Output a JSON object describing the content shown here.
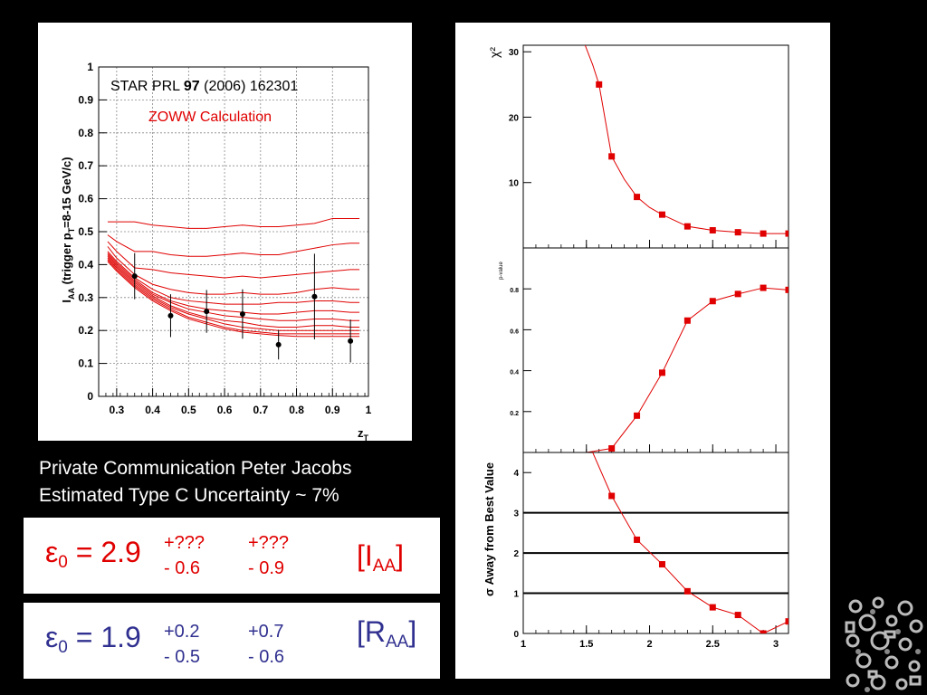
{
  "notes": {
    "line1": "Private Communication Peter Jacobs",
    "line2": "Estimated Type C Uncertainty ~ 7%"
  },
  "colors": {
    "data_red": "#e00000",
    "result_red": "#e00000",
    "result_blue": "#303090",
    "background": "#000000"
  },
  "results": [
    {
      "eps_symbol": "ε",
      "eps_sub": "0",
      "equals": "= 2.9",
      "plus1": "+???",
      "minus1": "- 0.6",
      "plus2": "+???",
      "minus2": "- 0.9",
      "label_main": "[I",
      "label_sub": "AA",
      "label_close": "]",
      "color": "red"
    },
    {
      "eps_symbol": "ε",
      "eps_sub": "0",
      "equals": "= 1.9",
      "plus1": "+0.2",
      "minus1": "- 0.5",
      "plus2": "+0.7",
      "minus2": "- 0.6",
      "label_main": "[R",
      "label_sub": "AA",
      "label_close": "]",
      "color": "blue"
    }
  ],
  "chart_data": [
    {
      "type": "scatter",
      "annotation_ref_prefix": "STAR PRL ",
      "annotation_ref_bold": "97",
      "annotation_ref_suffix": " (2006) 162301",
      "annotation_calc": "ZOWW Calculation",
      "ylabel_main": "I",
      "ylabel_sub1": "AA",
      "ylabel_mid": " (trigger p",
      "ylabel_sub2": "T",
      "ylabel_end": "=8-15 GeV/c)",
      "xlabel_main": "z",
      "xlabel_sub": "T",
      "xlim": [
        0.25,
        1.0
      ],
      "ylim": [
        0,
        1.0
      ],
      "grid": true,
      "x_ticks": [
        "0.3",
        "0.4",
        "0.5",
        "0.6",
        "0.7",
        "0.8",
        "0.9",
        "1"
      ],
      "x_tick_values": [
        0.3,
        0.4,
        0.5,
        0.6,
        0.7,
        0.8,
        0.9,
        1.0
      ],
      "y_ticks": [
        "0",
        "0.1",
        "0.2",
        "0.3",
        "0.4",
        "0.5",
        "0.6",
        "0.7",
        "0.8",
        "0.9",
        "1"
      ],
      "y_tick_values": [
        0,
        0.1,
        0.2,
        0.3,
        0.4,
        0.5,
        0.6,
        0.7,
        0.8,
        0.9,
        1.0
      ],
      "data_points": [
        {
          "x": 0.35,
          "y": 0.365,
          "err": 0.07
        },
        {
          "x": 0.45,
          "y": 0.245,
          "err": 0.065
        },
        {
          "x": 0.55,
          "y": 0.258,
          "err": 0.065
        },
        {
          "x": 0.65,
          "y": 0.25,
          "err": 0.075
        },
        {
          "x": 0.75,
          "y": 0.157,
          "err": 0.045
        },
        {
          "x": 0.85,
          "y": 0.303,
          "err": 0.13
        },
        {
          "x": 0.95,
          "y": 0.168,
          "err": 0.065
        }
      ],
      "curve_x": [
        0.275,
        0.3,
        0.35,
        0.4,
        0.45,
        0.5,
        0.55,
        0.6,
        0.65,
        0.7,
        0.75,
        0.8,
        0.85,
        0.9,
        0.95,
        0.975
      ],
      "series": [
        {
          "values": [
            0.53,
            0.53,
            0.53,
            0.52,
            0.515,
            0.51,
            0.51,
            0.515,
            0.52,
            0.515,
            0.515,
            0.52,
            0.525,
            0.54,
            0.54,
            0.54
          ]
        },
        {
          "values": [
            0.49,
            0.47,
            0.44,
            0.44,
            0.43,
            0.425,
            0.425,
            0.43,
            0.435,
            0.43,
            0.43,
            0.44,
            0.45,
            0.46,
            0.465,
            0.465
          ]
        },
        {
          "values": [
            0.47,
            0.44,
            0.39,
            0.385,
            0.375,
            0.37,
            0.365,
            0.36,
            0.365,
            0.36,
            0.365,
            0.37,
            0.375,
            0.38,
            0.385,
            0.385
          ]
        },
        {
          "values": [
            0.455,
            0.42,
            0.37,
            0.34,
            0.325,
            0.315,
            0.31,
            0.31,
            0.315,
            0.31,
            0.31,
            0.315,
            0.325,
            0.33,
            0.325,
            0.325
          ]
        },
        {
          "values": [
            0.44,
            0.41,
            0.36,
            0.325,
            0.3,
            0.29,
            0.285,
            0.28,
            0.28,
            0.28,
            0.285,
            0.285,
            0.29,
            0.29,
            0.285,
            0.285
          ]
        },
        {
          "values": [
            0.435,
            0.405,
            0.355,
            0.315,
            0.29,
            0.275,
            0.265,
            0.26,
            0.255,
            0.25,
            0.25,
            0.255,
            0.26,
            0.26,
            0.255,
            0.255
          ]
        },
        {
          "values": [
            0.43,
            0.4,
            0.35,
            0.31,
            0.285,
            0.265,
            0.255,
            0.245,
            0.24,
            0.235,
            0.23,
            0.23,
            0.235,
            0.235,
            0.23,
            0.23
          ]
        },
        {
          "values": [
            0.425,
            0.395,
            0.345,
            0.305,
            0.275,
            0.255,
            0.24,
            0.23,
            0.225,
            0.215,
            0.21,
            0.21,
            0.215,
            0.215,
            0.21,
            0.21
          ]
        },
        {
          "values": [
            0.42,
            0.39,
            0.34,
            0.3,
            0.27,
            0.25,
            0.235,
            0.22,
            0.21,
            0.205,
            0.2,
            0.2,
            0.2,
            0.2,
            0.2,
            0.2
          ]
        },
        {
          "values": [
            0.415,
            0.385,
            0.335,
            0.295,
            0.265,
            0.24,
            0.225,
            0.21,
            0.2,
            0.195,
            0.19,
            0.19,
            0.19,
            0.19,
            0.19,
            0.19
          ]
        },
        {
          "values": [
            0.41,
            0.38,
            0.33,
            0.29,
            0.26,
            0.235,
            0.22,
            0.205,
            0.195,
            0.19,
            0.185,
            0.182,
            0.182,
            0.182,
            0.182,
            0.182
          ]
        }
      ]
    },
    {
      "type": "line",
      "ylabel": "χ²",
      "xlim": [
        1.0,
        3.1
      ],
      "ylim": [
        0,
        31
      ],
      "y_ticks": [
        "10",
        "20",
        "30"
      ],
      "y_tick_values": [
        10,
        20,
        30
      ],
      "curve": [
        [
          1.49,
          31
        ],
        [
          1.55,
          28
        ],
        [
          1.6,
          25
        ],
        [
          1.7,
          14
        ],
        [
          1.8,
          10.5
        ],
        [
          1.9,
          7.8
        ],
        [
          2.0,
          6.2
        ],
        [
          2.1,
          5.1
        ],
        [
          2.3,
          3.3
        ],
        [
          2.5,
          2.7
        ],
        [
          2.7,
          2.4
        ],
        [
          2.9,
          2.2
        ],
        [
          3.1,
          2.2
        ]
      ],
      "points": [
        [
          1.6,
          25
        ],
        [
          1.7,
          14
        ],
        [
          1.9,
          7.8
        ],
        [
          2.1,
          5.1
        ],
        [
          2.3,
          3.3
        ],
        [
          2.5,
          2.7
        ],
        [
          2.7,
          2.4
        ],
        [
          2.9,
          2.2
        ],
        [
          3.1,
          2.2
        ]
      ]
    },
    {
      "type": "line",
      "ylabel": "p-value",
      "xlim": [
        1.0,
        3.1
      ],
      "ylim": [
        0,
        1.0
      ],
      "y_ticks": [
        "0.2",
        "0.4",
        "0.6",
        "0.8"
      ],
      "y_tick_values": [
        0.2,
        0.4,
        0.6,
        0.8
      ],
      "curve": [
        [
          1.5,
          0
        ],
        [
          1.7,
          0.02
        ],
        [
          1.9,
          0.18
        ],
        [
          2.1,
          0.39
        ],
        [
          2.3,
          0.645
        ],
        [
          2.5,
          0.74
        ],
        [
          2.7,
          0.775
        ],
        [
          2.9,
          0.805
        ],
        [
          3.1,
          0.795
        ]
      ],
      "points": [
        [
          1.7,
          0.02
        ],
        [
          1.9,
          0.18
        ],
        [
          2.1,
          0.39
        ],
        [
          2.3,
          0.645
        ],
        [
          2.5,
          0.74
        ],
        [
          2.7,
          0.775
        ],
        [
          2.9,
          0.805
        ],
        [
          3.1,
          0.795
        ]
      ]
    },
    {
      "type": "line",
      "ylabel": "σ Away from Best Value",
      "xlim": [
        1.0,
        3.1
      ],
      "ylim": [
        0,
        4.5
      ],
      "y_ticks": [
        "0",
        "1",
        "2",
        "3",
        "4"
      ],
      "y_tick_values": [
        0,
        1,
        2,
        3,
        4
      ],
      "x_ticks": [
        "1",
        "1.5",
        "2",
        "2.5",
        "3"
      ],
      "x_tick_values": [
        1,
        1.5,
        2,
        2.5,
        3
      ],
      "hlines": [
        1,
        2,
        3
      ],
      "curve": [
        [
          1.55,
          4.5
        ],
        [
          1.7,
          3.42
        ],
        [
          1.9,
          2.33
        ],
        [
          2.1,
          1.72
        ],
        [
          2.3,
          1.05
        ],
        [
          2.5,
          0.65
        ],
        [
          2.7,
          0.46
        ],
        [
          2.9,
          0.0
        ],
        [
          3.1,
          0.3
        ]
      ],
      "points": [
        [
          1.7,
          3.42
        ],
        [
          1.9,
          2.33
        ],
        [
          2.1,
          1.72
        ],
        [
          2.3,
          1.05
        ],
        [
          2.5,
          0.65
        ],
        [
          2.7,
          0.46
        ],
        [
          2.9,
          0.0
        ],
        [
          3.1,
          0.3
        ]
      ]
    }
  ]
}
